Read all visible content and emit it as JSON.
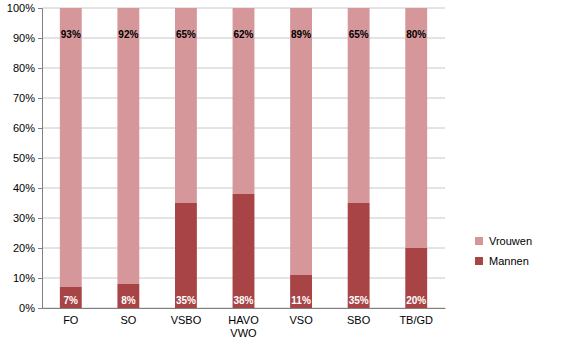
{
  "chart_data": {
    "type": "bar",
    "stacked": true,
    "data_labels": true,
    "grid": true,
    "legend": "right",
    "categories": [
      "FO",
      "SO",
      "VSBO",
      "HAVO\nVWO",
      "VSO",
      "SBO",
      "TB/GD"
    ],
    "series": [
      {
        "name": "Mannen",
        "color": "#a84446",
        "values": [
          7,
          8,
          35,
          38,
          11,
          35,
          20
        ],
        "value_labels": [
          "7%",
          "8%",
          "35%",
          "38%",
          "11%",
          "35%",
          "20%"
        ]
      },
      {
        "name": "Vrouwen",
        "color": "#d6979b",
        "values": [
          93,
          92,
          65,
          62,
          89,
          65,
          80
        ],
        "value_labels": [
          "93%",
          "92%",
          "65%",
          "62%",
          "89%",
          "65%",
          "80%"
        ]
      }
    ],
    "ylim": [
      0,
      100
    ],
    "yticks": [
      {
        "value": 0,
        "label": "0%"
      },
      {
        "value": 10,
        "label": "10%"
      },
      {
        "value": 20,
        "label": "20%"
      },
      {
        "value": 30,
        "label": "30%"
      },
      {
        "value": 40,
        "label": "40%"
      },
      {
        "value": 50,
        "label": "50%"
      },
      {
        "value": 60,
        "label": "60%"
      },
      {
        "value": 70,
        "label": "70%"
      },
      {
        "value": 80,
        "label": "80%"
      },
      {
        "value": 90,
        "label": "90%"
      },
      {
        "value": 100,
        "label": "100%"
      }
    ]
  }
}
